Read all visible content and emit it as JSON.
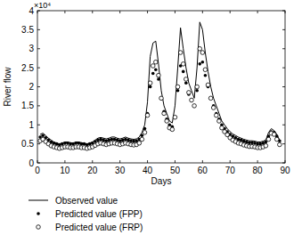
{
  "chart_data": {
    "type": "line",
    "x_label": "Days",
    "y_label": "River flow",
    "annotations": [
      "×10⁴"
    ],
    "xlim": [
      0,
      90
    ],
    "xticks": [
      0,
      10,
      20,
      30,
      40,
      50,
      60,
      70,
      80,
      90
    ],
    "ylim": [
      0,
      4
    ],
    "yticks": [
      0,
      0.5,
      1,
      1.5,
      2,
      2.5,
      3,
      3.5,
      4
    ],
    "legend": "bottom",
    "grid": false,
    "x": [
      1,
      2,
      3,
      4,
      5,
      6,
      7,
      8,
      9,
      10,
      11,
      12,
      13,
      14,
      15,
      16,
      17,
      18,
      19,
      20,
      21,
      22,
      23,
      24,
      25,
      26,
      27,
      28,
      29,
      30,
      31,
      32,
      33,
      34,
      35,
      36,
      37,
      38,
      39,
      40,
      41,
      42,
      43,
      44,
      45,
      46,
      47,
      48,
      49,
      50,
      51,
      52,
      53,
      54,
      55,
      56,
      57,
      58,
      59,
      60,
      61,
      62,
      63,
      64,
      65,
      66,
      67,
      68,
      69,
      70,
      71,
      72,
      73,
      74,
      75,
      76,
      77,
      78,
      79,
      80,
      81,
      82,
      83,
      84,
      85,
      86,
      87,
      88
    ],
    "series": [
      {
        "name": "Observed value",
        "type": "line",
        "marker": "none",
        "line_style": "solid",
        "color": "#000000",
        "values": [
          0.75,
          0.78,
          0.72,
          0.65,
          0.6,
          0.55,
          0.52,
          0.5,
          0.52,
          0.55,
          0.55,
          0.53,
          0.52,
          0.55,
          0.55,
          0.53,
          0.52,
          0.5,
          0.52,
          0.55,
          0.6,
          0.65,
          0.67,
          0.65,
          0.63,
          0.65,
          0.68,
          0.68,
          0.65,
          0.63,
          0.65,
          0.68,
          0.65,
          0.63,
          0.62,
          0.63,
          0.68,
          0.8,
          1.0,
          1.6,
          2.8,
          3.15,
          3.2,
          2.6,
          1.9,
          1.5,
          1.3,
          1.1,
          1.05,
          1.5,
          2.5,
          3.55,
          3.0,
          2.5,
          2.1,
          1.9,
          1.7,
          2.5,
          3.7,
          3.5,
          2.9,
          2.4,
          2.0,
          1.7,
          1.5,
          1.3,
          1.1,
          1.0,
          0.9,
          0.82,
          0.76,
          0.72,
          0.68,
          0.65,
          0.62,
          0.6,
          0.58,
          0.58,
          0.57,
          0.55,
          0.55,
          0.57,
          0.6,
          0.8,
          0.9,
          0.85,
          0.75,
          0.6
        ]
      },
      {
        "name": "Predicted value (FPP)",
        "type": "scatter",
        "marker": "dot",
        "color": "#000000",
        "values": [
          0.68,
          0.72,
          0.66,
          0.6,
          0.55,
          0.52,
          0.5,
          0.48,
          0.5,
          0.52,
          0.52,
          0.5,
          0.5,
          0.52,
          0.52,
          0.5,
          0.5,
          0.48,
          0.5,
          0.52,
          0.56,
          0.6,
          0.62,
          0.6,
          0.58,
          0.6,
          0.62,
          0.62,
          0.6,
          0.58,
          0.6,
          0.62,
          0.6,
          0.58,
          0.57,
          0.58,
          0.62,
          0.72,
          0.9,
          1.3,
          2.0,
          2.35,
          2.45,
          2.2,
          1.7,
          1.35,
          1.15,
          1.0,
          0.95,
          1.2,
          1.9,
          2.55,
          2.4,
          2.1,
          1.8,
          1.65,
          1.5,
          1.9,
          2.6,
          2.65,
          2.3,
          2.0,
          1.7,
          1.5,
          1.3,
          1.15,
          1.0,
          0.9,
          0.82,
          0.75,
          0.7,
          0.66,
          0.62,
          0.6,
          0.57,
          0.55,
          0.53,
          0.53,
          0.52,
          0.5,
          0.5,
          0.52,
          0.55,
          0.7,
          0.82,
          0.8,
          0.7,
          0.58
        ]
      },
      {
        "name": "Predicted value (FRP)",
        "type": "scatter",
        "marker": "circle",
        "color": "#000000",
        "values": [
          0.58,
          0.62,
          0.56,
          0.5,
          0.45,
          0.42,
          0.4,
          0.38,
          0.4,
          0.42,
          0.42,
          0.4,
          0.4,
          0.42,
          0.42,
          0.4,
          0.4,
          0.38,
          0.4,
          0.42,
          0.46,
          0.5,
          0.52,
          0.5,
          0.48,
          0.5,
          0.52,
          0.52,
          0.5,
          0.48,
          0.5,
          0.52,
          0.5,
          0.48,
          0.47,
          0.48,
          0.52,
          0.62,
          0.8,
          1.25,
          2.1,
          2.55,
          2.65,
          2.3,
          1.7,
          1.3,
          1.1,
          0.92,
          0.88,
          1.2,
          2.0,
          2.9,
          2.6,
          2.2,
          1.85,
          1.65,
          1.5,
          2.0,
          3.0,
          2.9,
          2.45,
          2.05,
          1.7,
          1.45,
          1.25,
          1.1,
          0.92,
          0.82,
          0.74,
          0.66,
          0.6,
          0.56,
          0.52,
          0.5,
          0.47,
          0.45,
          0.43,
          0.43,
          0.42,
          0.4,
          0.4,
          0.42,
          0.45,
          0.62,
          0.78,
          0.75,
          0.62,
          0.48
        ]
      }
    ]
  }
}
